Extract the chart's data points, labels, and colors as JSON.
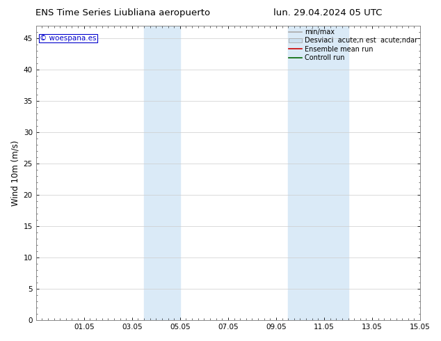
{
  "title_left": "ENS Time Series Liubliana aeropuerto",
  "title_right": "lun. 29.04.2024 05 UTC",
  "ylabel": "Wind 10m (m/s)",
  "ylim": [
    0,
    47
  ],
  "yticks": [
    0,
    5,
    10,
    15,
    20,
    25,
    30,
    35,
    40,
    45
  ],
  "xlim": [
    0,
    16
  ],
  "xtick_labels": [
    "01.05",
    "03.05",
    "05.05",
    "07.05",
    "09.05",
    "11.05",
    "13.05",
    "15.05"
  ],
  "xtick_positions": [
    2,
    4,
    6,
    8,
    10,
    12,
    14,
    16
  ],
  "shaded_bands": [
    {
      "x_start": 4.5,
      "x_end": 6.0,
      "color": "#daeaf7"
    },
    {
      "x_start": 10.5,
      "x_end": 13.0,
      "color": "#daeaf7"
    }
  ],
  "legend_labels": [
    "min/max",
    "Desviaci  acute;n est  acute;ndar",
    "Ensemble mean run",
    "Controll run"
  ],
  "legend_colors": [
    "#aaaaaa",
    "#cce0f0",
    "#cc0000",
    "#006600"
  ],
  "watermark_text": "© woespana.es",
  "watermark_color": "#0000cc",
  "background_color": "#ffffff",
  "grid_color": "#cccccc",
  "title_fontsize": 9.5,
  "tick_fontsize": 7.5,
  "ylabel_fontsize": 8.5,
  "legend_fontsize": 7,
  "watermark_fontsize": 7.5
}
